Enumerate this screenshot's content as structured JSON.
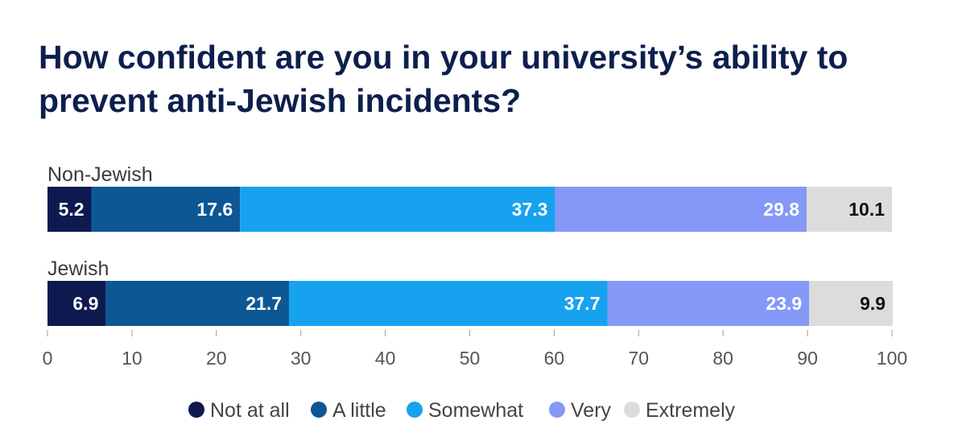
{
  "title": "How confident are you in your university’s ability to prevent anti-Jewish incidents?",
  "chart_data": {
    "type": "bar",
    "orientation": "horizontal",
    "stacked": true,
    "categories": [
      "Non-Jewish",
      "Jewish"
    ],
    "series": [
      {
        "name": "Not at all",
        "color": "#0e1a4f",
        "label_color": "#ffffff",
        "values": [
          5.2,
          6.9
        ]
      },
      {
        "name": "A little",
        "color": "#0d5795",
        "label_color": "#ffffff",
        "values": [
          17.6,
          21.7
        ]
      },
      {
        "name": "Somewhat",
        "color": "#17a2f0",
        "label_color": "#ffffff",
        "values": [
          37.3,
          37.7
        ]
      },
      {
        "name": "Very",
        "color": "#8598f7",
        "label_color": "#ffffff",
        "values": [
          29.8,
          23.9
        ]
      },
      {
        "name": "Extremely",
        "color": "#dcdcdc",
        "label_color": "#111111",
        "values": [
          10.1,
          9.9
        ]
      }
    ],
    "xlim": [
      0,
      100
    ],
    "xticks": [
      "0",
      "10",
      "20",
      "30",
      "40",
      "50",
      "60",
      "70",
      "80",
      "90",
      "100"
    ],
    "xlabel": "",
    "ylabel": "",
    "grid": false,
    "legend_position": "bottom"
  }
}
